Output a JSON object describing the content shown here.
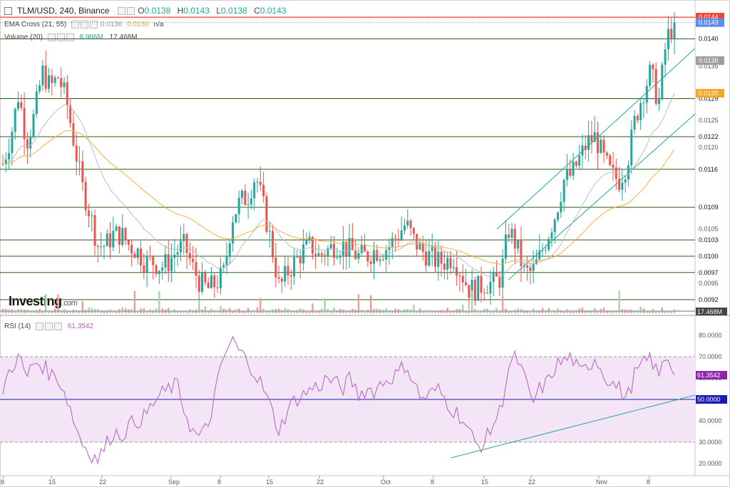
{
  "header": {
    "symbol": "TLM/USD, 240, Binance",
    "ohlc": [
      {
        "k": "O",
        "v": "0.0138"
      },
      {
        "k": "H",
        "v": "0.0143"
      },
      {
        "k": "L",
        "v": "0.0138"
      },
      {
        "k": "C",
        "v": "0.0143"
      }
    ],
    "ema_label": "EMA Cross (21, 55)",
    "ema_fast": "0.0136",
    "ema_slow": "0.0130",
    "ema_na": "n/a",
    "volume_label": "Volume (20)",
    "volume_value": "8.996M",
    "volume_ma": "17.468M",
    "rsi_label": "RSI (14)",
    "rsi_value": "61.3542"
  },
  "logo": {
    "text": "Investing",
    "suffix": ".com"
  },
  "colors": {
    "up": "#26a69a",
    "down": "#ef5350",
    "hline": "#2e5e16",
    "channel": "#26a69a",
    "ema_fast": "#bdbdbd",
    "ema_slow": "#f5b041",
    "rsi": "#b35fc4",
    "rsi_band": "#f3e5f5",
    "rsi_mid": "#1a1ab0",
    "resistance": "#ff0000"
  },
  "chart_data": [
    {
      "type": "candlestick",
      "x_ticks": [
        "8",
        "15",
        "22",
        "Sep",
        "8",
        "15",
        "22",
        "Oct",
        "8",
        "15",
        "22",
        "Nov",
        "8"
      ],
      "y_ticks": [
        "0.0135",
        "0.0125",
        "0.0120",
        "0.0105",
        "0.0095"
      ],
      "ylim": [
        0.00895,
        0.01465
      ],
      "horizontal_levels": [
        "0.0140",
        "0.0129",
        "0.0122",
        "0.0116",
        "0.0109",
        "0.0103",
        "0.0100",
        "0.0097",
        "0.0092"
      ],
      "resistance_level": "0.0144",
      "last_price": "0.0143",
      "ema_fast_last": "0.0136",
      "ema_slow_last": "0.0130",
      "volume_ma_label": "17.468M",
      "close_path": [
        0.0117,
        0.0122,
        0.013,
        0.0121,
        0.0126,
        0.0134,
        0.0131,
        0.0133,
        0.0129,
        0.0121,
        0.0113,
        0.0108,
        0.0102,
        0.0102,
        0.0104,
        0.0104,
        0.0102,
        0.0101,
        0.0099,
        0.0099,
        0.0098,
        0.0099,
        0.0101,
        0.0102,
        0.0098,
        0.0095,
        0.0094,
        0.0095,
        0.0097,
        0.0107,
        0.011,
        0.0111,
        0.0115,
        0.0109,
        0.0102,
        0.0094,
        0.0097,
        0.0099,
        0.0101,
        0.0102,
        0.01,
        0.0101,
        0.0102,
        0.0102,
        0.0101,
        0.01,
        0.01,
        0.0101,
        0.0101,
        0.0102,
        0.0104,
        0.0106,
        0.0103,
        0.0101,
        0.01,
        0.0099,
        0.0099,
        0.01,
        0.0097,
        0.0094,
        0.0094,
        0.0095,
        0.0095,
        0.0096,
        0.0105,
        0.0102,
        0.0097,
        0.0097,
        0.01,
        0.0104,
        0.0108,
        0.0114,
        0.0115,
        0.0118,
        0.0121,
        0.0122,
        0.0118,
        0.0115,
        0.0114,
        0.0117,
        0.0125,
        0.013,
        0.0134,
        0.0128,
        0.014,
        0.0143
      ],
      "rsi": {
        "ylim": [
          15,
          88
        ],
        "y_ticks": [
          "80.0000",
          "70.0000",
          "60.0000",
          "50.0000",
          "40.0000",
          "30.0000",
          "20.0000"
        ],
        "band": [
          30,
          70
        ],
        "midline": 50,
        "last_value": "61.3542",
        "last_label": "50.0000",
        "path": [
          55,
          65,
          70,
          60,
          68,
          66,
          62,
          60,
          52,
          40,
          30,
          25,
          22,
          28,
          35,
          33,
          38,
          40,
          42,
          48,
          52,
          55,
          57,
          45,
          35,
          32,
          38,
          55,
          70,
          78,
          72,
          68,
          62,
          55,
          45,
          35,
          45,
          50,
          52,
          55,
          56,
          60,
          58,
          55,
          60,
          52,
          55,
          54,
          58,
          60,
          62,
          67,
          58,
          50,
          52,
          55,
          50,
          45,
          42,
          35,
          28,
          30,
          38,
          45,
          65,
          70,
          60,
          48,
          55,
          58,
          66,
          68,
          70,
          62,
          65,
          70,
          62,
          58,
          55,
          50,
          62,
          66,
          70,
          60,
          72,
          61.35
        ]
      }
    }
  ]
}
